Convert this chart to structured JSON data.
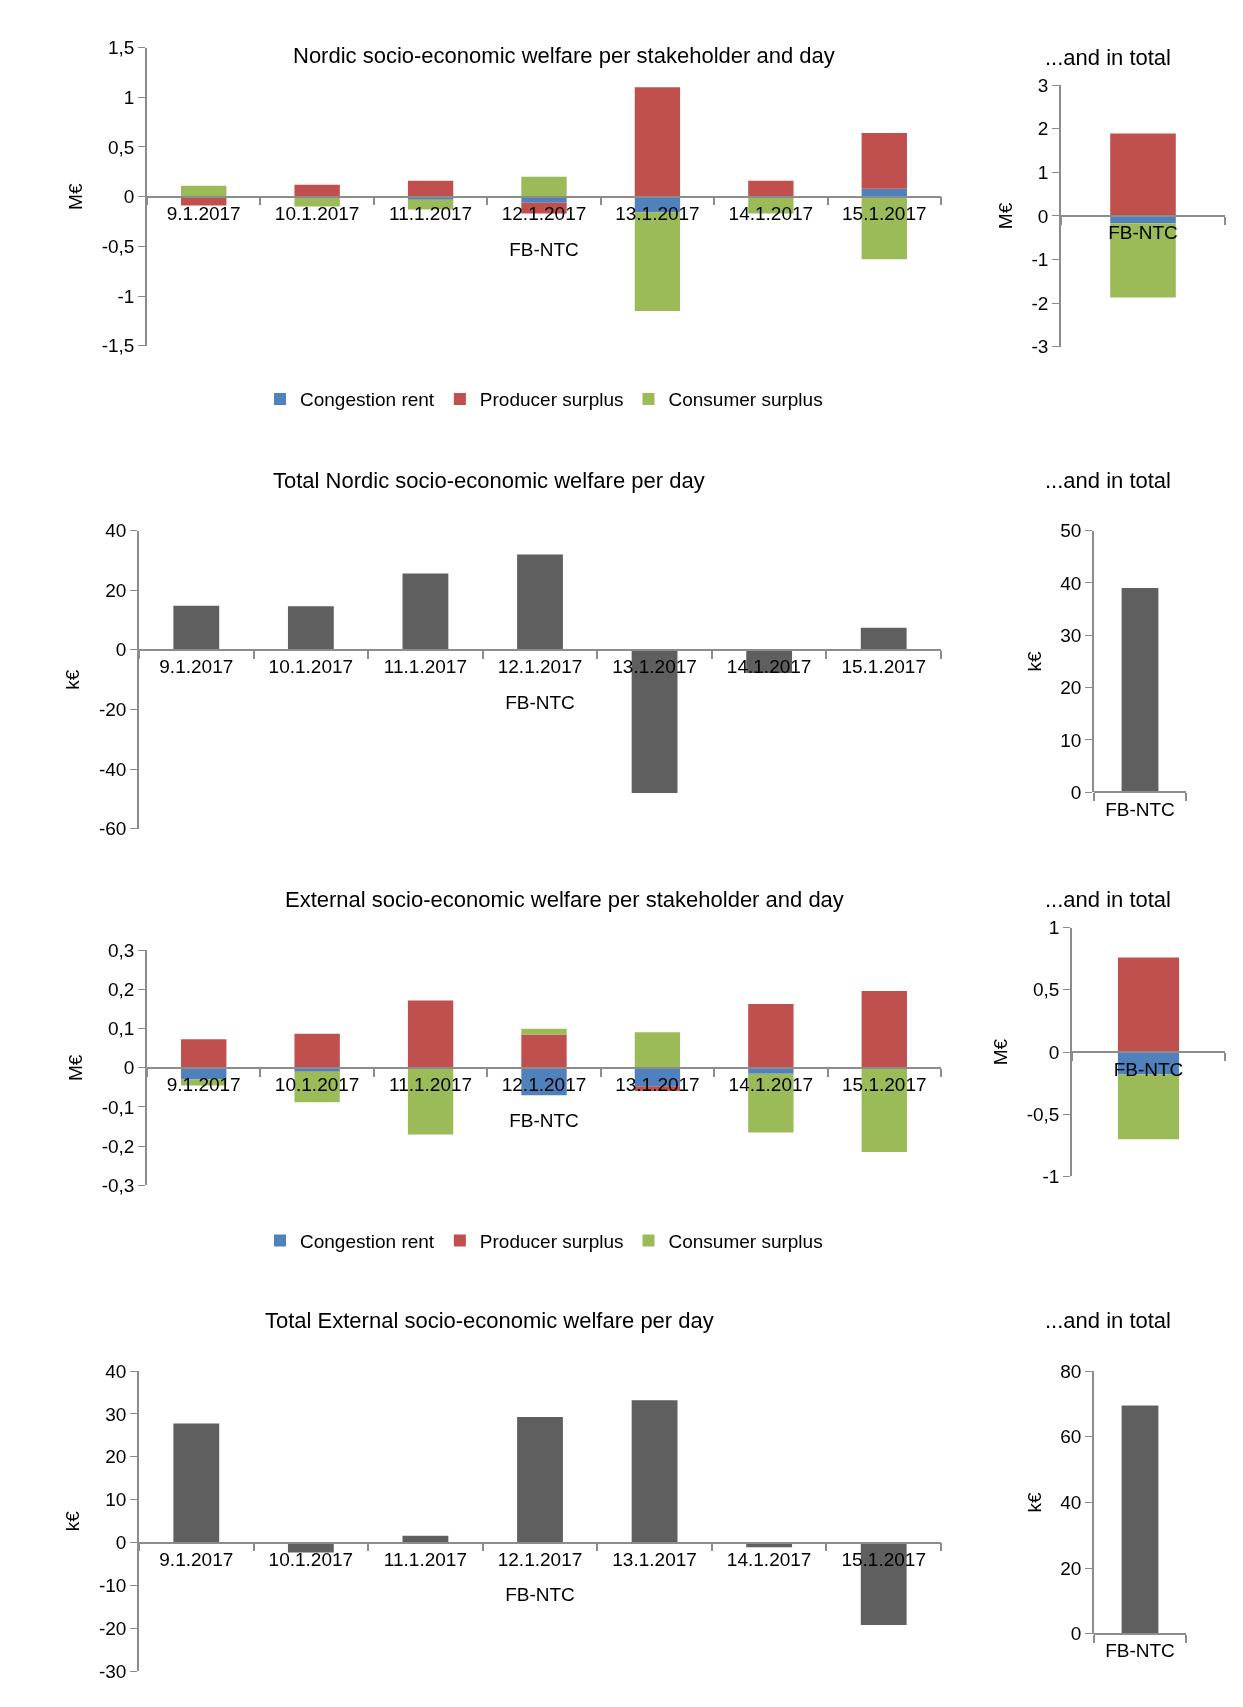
{
  "chart_data": [
    {
      "type": "bar",
      "stacked": true,
      "title": "Nordic socio-economic welfare per stakeholder and day",
      "xlabel": "FB-NTC",
      "ylabel": "M€",
      "legend": "bottom",
      "categories": [
        "9.1.2017",
        "10.1.2017",
        "11.1.2017",
        "12.1.2017",
        "13.1.2017",
        "14.1.2017",
        "15.1.2017"
      ],
      "series": [
        {
          "name": "Congestion rent",
          "color": "#4f81bd",
          "values": [
            0,
            0,
            -0.03,
            -0.06,
            -0.16,
            0,
            0.08
          ]
        },
        {
          "name": "Producer surplus",
          "color": "#c0504d",
          "values": [
            -0.09,
            0.12,
            0.16,
            -0.11,
            1.1,
            0.16,
            0.56
          ]
        },
        {
          "name": "Consumer surplus",
          "color": "#9bbb59",
          "values": [
            0.11,
            -0.1,
            -0.1,
            0.2,
            -0.99,
            -0.17,
            -0.63
          ]
        }
      ],
      "ylim": [
        -1.5,
        1.5
      ],
      "yticks": [
        {
          "value": -1.5,
          "label": "-1,5"
        },
        -1,
        {
          "value": -0.5,
          "label": "-0,5"
        },
        0,
        {
          "value": 0.5,
          "label": "0,5"
        },
        1,
        {
          "value": 1.5,
          "label": "1,5"
        }
      ]
    },
    {
      "type": "bar",
      "stacked": true,
      "title": "...and in total",
      "ylabel": "M€",
      "categories": [
        "FB-NTC"
      ],
      "series": [
        {
          "color": "#4f81bd",
          "values": [
            -0.17
          ]
        },
        {
          "color": "#c0504d",
          "values": [
            1.89
          ]
        },
        {
          "color": "#9bbb59",
          "values": [
            -1.7
          ]
        }
      ],
      "ylim": [
        -3,
        3
      ],
      "yticks": [
        -3,
        -2,
        -1,
        0,
        1,
        2,
        3
      ]
    },
    {
      "type": "bar",
      "title": "Total Nordic socio-economic welfare per day",
      "xlabel": "FB-NTC",
      "ylabel": "k€",
      "categories": [
        "9.1.2017",
        "10.1.2017",
        "11.1.2017",
        "12.1.2017",
        "13.1.2017",
        "14.1.2017",
        "15.1.2017"
      ],
      "series": [
        {
          "color": "#5f5f5f",
          "values": [
            14.8,
            14.6,
            25.6,
            32,
            -48,
            -7.8,
            7.4
          ]
        }
      ],
      "ylim": [
        -60,
        40
      ],
      "yticks": [
        -60,
        -40,
        -20,
        0,
        20,
        40
      ]
    },
    {
      "type": "bar",
      "title": "...and in total",
      "ylabel": "k€",
      "categories": [
        "FB-NTC"
      ],
      "series": [
        {
          "color": "#5f5f5f",
          "values": [
            39
          ]
        }
      ],
      "ylim": [
        0,
        50
      ],
      "yticks": [
        0,
        10,
        20,
        30,
        40,
        50
      ]
    },
    {
      "type": "bar",
      "stacked": true,
      "title": "External socio-economic welfare per stakeholder and day",
      "xlabel": "FB-NTC",
      "ylabel": "M€",
      "legend": "bottom",
      "categories": [
        "9.1.2017",
        "10.1.2017",
        "11.1.2017",
        "12.1.2017",
        "13.1.2017",
        "14.1.2017",
        "15.1.2017"
      ],
      "series": [
        {
          "name": "Congestion rent",
          "color": "#4f81bd",
          "values": [
            -0.03,
            -0.01,
            0,
            -0.07,
            -0.047,
            -0.015,
            0
          ]
        },
        {
          "name": "Producer surplus",
          "color": "#c0504d",
          "values": [
            0.073,
            0.087,
            0.172,
            0.085,
            -0.012,
            0.163,
            0.196
          ]
        },
        {
          "name": "Consumer surplus",
          "color": "#9bbb59",
          "values": [
            -0.015,
            -0.078,
            -0.17,
            0.015,
            0.091,
            -0.15,
            -0.215
          ]
        }
      ],
      "ylim": [
        -0.3,
        0.3
      ],
      "yticks": [
        {
          "value": -0.3,
          "label": "-0,3"
        },
        {
          "value": -0.2,
          "label": "-0,2"
        },
        {
          "value": -0.1,
          "label": "-0,1"
        },
        0,
        {
          "value": 0.1,
          "label": "0,1"
        },
        {
          "value": 0.2,
          "label": "0,2"
        },
        {
          "value": 0.3,
          "label": "0,3"
        }
      ]
    },
    {
      "type": "bar",
      "stacked": true,
      "title": "...and in total",
      "ylabel": "M€",
      "categories": [
        "FB-NTC"
      ],
      "series": [
        {
          "color": "#4f81bd",
          "values": [
            -0.18
          ]
        },
        {
          "color": "#c0504d",
          "values": [
            0.76
          ]
        },
        {
          "color": "#9bbb59",
          "values": [
            -0.52
          ]
        }
      ],
      "ylim": [
        -1,
        1
      ],
      "yticks": [
        -1,
        {
          "value": -0.5,
          "label": "-0,5"
        },
        0,
        {
          "value": 0.5,
          "label": "0,5"
        },
        1
      ]
    },
    {
      "type": "bar",
      "title": "Total External socio-economic welfare per day",
      "xlabel": "FB-NTC",
      "ylabel": "k€",
      "categories": [
        "9.1.2017",
        "10.1.2017",
        "11.1.2017",
        "12.1.2017",
        "13.1.2017",
        "14.1.2017",
        "15.1.2017"
      ],
      "series": [
        {
          "color": "#5f5f5f",
          "values": [
            27.8,
            -2.3,
            1.6,
            29.3,
            33.2,
            -1.1,
            -19.2
          ]
        }
      ],
      "ylim": [
        -30,
        40
      ],
      "yticks": [
        -30,
        -20,
        -10,
        0,
        10,
        20,
        30,
        40
      ]
    },
    {
      "type": "bar",
      "title": "...and in total",
      "ylabel": "k€",
      "categories": [
        "FB-NTC"
      ],
      "series": [
        {
          "color": "#5f5f5f",
          "values": [
            69.5
          ]
        }
      ],
      "ylim": [
        0,
        80
      ],
      "yticks": [
        0,
        20,
        40,
        60,
        80
      ]
    }
  ]
}
